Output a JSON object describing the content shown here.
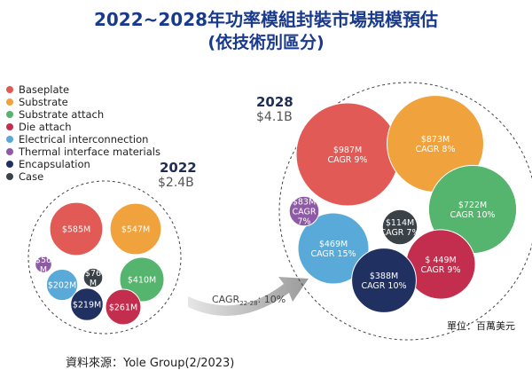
{
  "title": {
    "line1": "2022~2028年功率模組封裝市場規模預估",
    "line2": "(依技術別區分)"
  },
  "legend": [
    {
      "name": "Baseplate",
      "color": "#e15a55"
    },
    {
      "name": "Substrate",
      "color": "#f0a23c"
    },
    {
      "name": "Substrate attach",
      "color": "#55b46d"
    },
    {
      "name": "Die attach",
      "color": "#c42e4e"
    },
    {
      "name": "Electrical interconnection",
      "color": "#5aaad9"
    },
    {
      "name": "Thermal interface materials",
      "color": "#8e5aa6"
    },
    {
      "name": "Encapsulation",
      "color": "#203060"
    },
    {
      "name": "Case",
      "color": "#3a4248"
    }
  ],
  "cagr_arrow": {
    "prefix": "CAGR",
    "sub": "22-28",
    "suffix": ": 10%"
  },
  "unit": "單位：百萬美元",
  "source": "資料來源：Yole Group(2/2023)",
  "chart_data": [
    {
      "type": "bubble",
      "year": "2022",
      "total": "$2.4B",
      "series": [
        {
          "category": "Baseplate",
          "value": 585,
          "label": "$585M"
        },
        {
          "category": "Substrate",
          "value": 547,
          "label": "$547M"
        },
        {
          "category": "Substrate attach",
          "value": 410,
          "label": "$410M"
        },
        {
          "category": "Die attach",
          "value": 261,
          "label": "$261M"
        },
        {
          "category": "Electrical interconnection",
          "value": 202,
          "label": "$202M"
        },
        {
          "category": "Thermal interface materials",
          "value": 56,
          "label": "$56\nM"
        },
        {
          "category": "Encapsulation",
          "value": 219,
          "label": "$219M"
        },
        {
          "category": "Case",
          "value": 76,
          "label": "$76\nM"
        }
      ]
    },
    {
      "type": "bubble",
      "year": "2028",
      "total": "$4.1B",
      "series": [
        {
          "category": "Baseplate",
          "value": 987,
          "label": "$987M",
          "cagr": "CAGR 9%"
        },
        {
          "category": "Substrate",
          "value": 873,
          "label": "$873M",
          "cagr": "CAGR 8%"
        },
        {
          "category": "Substrate attach",
          "value": 722,
          "label": "$722M",
          "cagr": "CAGR 10%"
        },
        {
          "category": "Die attach",
          "value": 449,
          "label": "$ 449M",
          "cagr": "CAGR 9%"
        },
        {
          "category": "Electrical interconnection",
          "value": 469,
          "label": "$469M",
          "cagr": "CAGR 15%"
        },
        {
          "category": "Thermal interface materials",
          "value": 83,
          "label": "$83M",
          "cagr": "CAGR\n7%"
        },
        {
          "category": "Encapsulation",
          "value": 388,
          "label": "$388M",
          "cagr": "CAGR 10%"
        },
        {
          "category": "Case",
          "value": 114,
          "label": "$114M",
          "cagr": "CAGR 7%"
        }
      ]
    }
  ]
}
